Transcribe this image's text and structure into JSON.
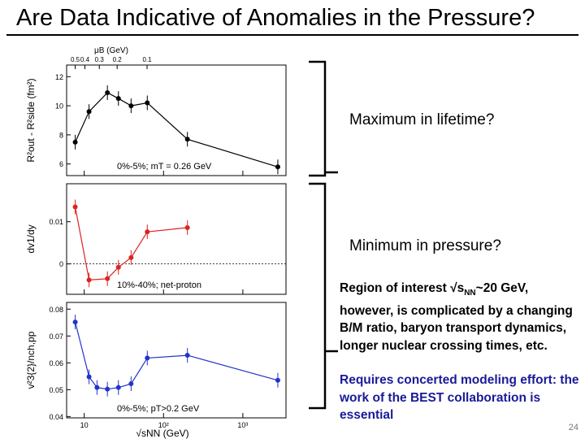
{
  "slide": {
    "title": "Are Data Indicative of Anomalies in the Pressure?",
    "callout_top": "Maximum in lifetime?",
    "callout_bottom": "Minimum in pressure?",
    "para1_prefix": "Region of interest √s",
    "para1_sub": "NN",
    "para1_rest": "~20 GeV, however, is complicated by a changing B/M ratio, baryon transport dynamics, longer nuclear crossing times, etc.",
    "para2": "Requires concerted modeling effort: the work of the BEST collaboration is essential",
    "page_number": "24"
  },
  "chart_data": [
    {
      "type": "line",
      "ylabel": "R²out - R²side (fm²)",
      "annotation": "0%-5%; mT = 0.26 GeV",
      "top_axis": {
        "label": "μB (GeV)",
        "ticks": [
          {
            "label": "0.5",
            "x": 7.7
          },
          {
            "label": "0.4",
            "x": 10.2
          },
          {
            "label": "0.3",
            "x": 15.5
          },
          {
            "label": "0.2",
            "x": 26
          },
          {
            "label": "0.1",
            "x": 62
          }
        ]
      },
      "x": [
        7.7,
        11.5,
        19.6,
        27,
        39,
        62.4,
        200,
        2760
      ],
      "y": [
        7.5,
        9.6,
        10.9,
        10.5,
        10.0,
        10.2,
        7.7,
        5.8
      ],
      "yticks": [
        "6",
        "8",
        "10",
        "12"
      ],
      "ylim": [
        5.2,
        12.8
      ],
      "color": "#000000"
    },
    {
      "type": "line",
      "ylabel": "dv1/dy",
      "annotation": "10%-40%; net-proton",
      "x": [
        7.7,
        11.5,
        19.6,
        27,
        39,
        62.4,
        200
      ],
      "y": [
        0.0135,
        -0.0038,
        -0.0035,
        -0.0008,
        0.0015,
        0.0076,
        0.0086
      ],
      "yticks": [
        "0",
        "0.01"
      ],
      "ylim": [
        -0.0072,
        0.019
      ],
      "color": "#dd2222"
    },
    {
      "type": "line",
      "ylabel": "v²3{2}/nch,pp",
      "annotation": "0%-5%; pT>0.2 GeV",
      "x": [
        7.7,
        11.5,
        14.5,
        19.6,
        27,
        39,
        62.4,
        200,
        2760
      ],
      "y": [
        0.0752,
        0.0548,
        0.0508,
        0.0502,
        0.0508,
        0.0522,
        0.0618,
        0.0628,
        0.0535
      ],
      "yticks": [
        "0.04",
        "0.05",
        "0.06",
        "0.07",
        "0.08"
      ],
      "ylim": [
        0.0395,
        0.0825
      ],
      "color": "#2233cc",
      "xlabel": "√sNN (GeV)",
      "xticks": [
        {
          "label": "10",
          "value": 10
        },
        {
          "label": "10²",
          "value": 100
        },
        {
          "label": "10³",
          "value": 1000
        }
      ],
      "xlim": [
        6,
        3500
      ],
      "xscale": "log"
    }
  ]
}
